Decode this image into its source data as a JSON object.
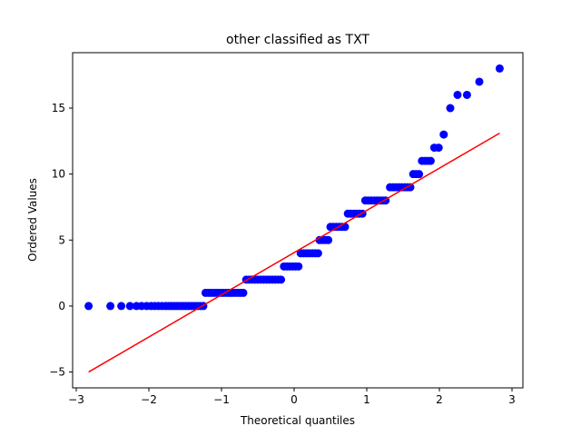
{
  "chart_data": {
    "type": "scatter",
    "title": "other classified as TXT",
    "xlabel": "Theoretical quantiles",
    "ylabel": "Ordered Values",
    "xlim": [
      -3.05,
      3.15
    ],
    "ylim": [
      -6.2,
      19.2
    ],
    "xticks": [
      -3,
      -2,
      -1,
      0,
      1,
      2,
      3
    ],
    "xtick_labels": [
      "−3",
      "−2",
      "−1",
      "0",
      "1",
      "2",
      "3"
    ],
    "yticks": [
      -5,
      0,
      5,
      10,
      15
    ],
    "ytick_labels": [
      "−5",
      "0",
      "5",
      "10",
      "15"
    ],
    "grid": false,
    "colors": {
      "points": "#0000ff",
      "fit_line": "#ff0000"
    },
    "series": [
      {
        "kind": "points",
        "values": [
          [
            -2.83,
            0
          ],
          [
            -2.53,
            0
          ],
          [
            -2.38,
            0
          ],
          [
            -2.26,
            0
          ],
          [
            -2.17,
            0
          ],
          [
            -2.1,
            0
          ],
          [
            -2.03,
            0
          ],
          [
            -1.97,
            0
          ],
          [
            -1.92,
            0
          ],
          [
            -1.87,
            0
          ],
          [
            -1.82,
            0
          ],
          [
            -1.77,
            0
          ],
          [
            -1.73,
            0
          ],
          [
            -1.69,
            0
          ],
          [
            -1.65,
            0
          ],
          [
            -1.61,
            0
          ],
          [
            -1.57,
            0
          ],
          [
            -1.53,
            0
          ],
          [
            -1.49,
            0
          ],
          [
            -1.45,
            0
          ],
          [
            -1.41,
            0
          ],
          [
            -1.37,
            0
          ],
          [
            -1.33,
            0
          ],
          [
            -1.29,
            0
          ],
          [
            -1.25,
            0
          ],
          [
            -1.22,
            1
          ],
          [
            -1.18,
            1
          ],
          [
            -1.14,
            1
          ],
          [
            -1.1,
            1
          ],
          [
            -1.06,
            1
          ],
          [
            -1.02,
            1
          ],
          [
            -0.98,
            1
          ],
          [
            -0.94,
            1
          ],
          [
            -0.9,
            1
          ],
          [
            -0.86,
            1
          ],
          [
            -0.82,
            1
          ],
          [
            -0.78,
            1
          ],
          [
            -0.74,
            1
          ],
          [
            -0.7,
            1
          ],
          [
            -0.66,
            2
          ],
          [
            -0.62,
            2
          ],
          [
            -0.58,
            2
          ],
          [
            -0.54,
            2
          ],
          [
            -0.5,
            2
          ],
          [
            -0.46,
            2
          ],
          [
            -0.42,
            2
          ],
          [
            -0.38,
            2
          ],
          [
            -0.34,
            2
          ],
          [
            -0.3,
            2
          ],
          [
            -0.26,
            2
          ],
          [
            -0.22,
            2
          ],
          [
            -0.18,
            2
          ],
          [
            -0.14,
            3
          ],
          [
            -0.1,
            3
          ],
          [
            -0.06,
            3
          ],
          [
            -0.02,
            3
          ],
          [
            0.02,
            3
          ],
          [
            0.06,
            3
          ],
          [
            0.09,
            4
          ],
          [
            0.13,
            4
          ],
          [
            0.17,
            4
          ],
          [
            0.21,
            4
          ],
          [
            0.25,
            4
          ],
          [
            0.29,
            4
          ],
          [
            0.33,
            4
          ],
          [
            0.35,
            5
          ],
          [
            0.39,
            5
          ],
          [
            0.43,
            5
          ],
          [
            0.47,
            5
          ],
          [
            0.5,
            6
          ],
          [
            0.54,
            6
          ],
          [
            0.58,
            6
          ],
          [
            0.62,
            6
          ],
          [
            0.66,
            6
          ],
          [
            0.7,
            6
          ],
          [
            0.74,
            7
          ],
          [
            0.78,
            7
          ],
          [
            0.82,
            7
          ],
          [
            0.86,
            7
          ],
          [
            0.9,
            7
          ],
          [
            0.94,
            7
          ],
          [
            0.98,
            8
          ],
          [
            1.02,
            8
          ],
          [
            1.06,
            8
          ],
          [
            1.1,
            8
          ],
          [
            1.14,
            8
          ],
          [
            1.18,
            8
          ],
          [
            1.22,
            8
          ],
          [
            1.26,
            8
          ],
          [
            1.32,
            9
          ],
          [
            1.36,
            9
          ],
          [
            1.4,
            9
          ],
          [
            1.44,
            9
          ],
          [
            1.48,
            9
          ],
          [
            1.52,
            9
          ],
          [
            1.56,
            9
          ],
          [
            1.6,
            9
          ],
          [
            1.64,
            10
          ],
          [
            1.68,
            10
          ],
          [
            1.72,
            10
          ],
          [
            1.76,
            11
          ],
          [
            1.8,
            11
          ],
          [
            1.84,
            11
          ],
          [
            1.88,
            11
          ],
          [
            1.93,
            12
          ],
          [
            1.99,
            12
          ],
          [
            2.06,
            13
          ],
          [
            2.15,
            15
          ],
          [
            2.25,
            16
          ],
          [
            2.38,
            16
          ],
          [
            2.55,
            17
          ],
          [
            2.83,
            18
          ]
        ]
      },
      {
        "kind": "fit_line",
        "values": [
          [
            -2.83,
            -5.0
          ],
          [
            2.83,
            13.1
          ]
        ]
      }
    ]
  }
}
